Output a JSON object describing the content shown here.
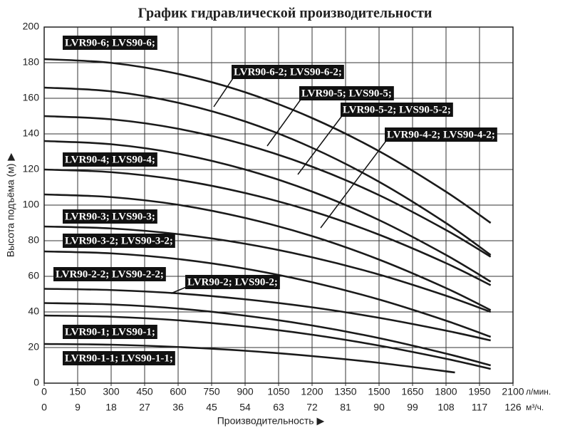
{
  "chart_data": {
    "type": "line",
    "title": "График гидравлической производительности",
    "ylabel": "Высота подъёма (м) ▶",
    "xlabel": "Производительность ▶",
    "x_unit": "л/мин.",
    "x2_unit": "м³/ч.",
    "xlim": [
      0,
      2100
    ],
    "xticks": [
      0,
      150,
      300,
      450,
      600,
      750,
      900,
      1050,
      1200,
      1350,
      1500,
      1650,
      1800,
      1950,
      2100
    ],
    "x2lim": [
      0,
      126
    ],
    "x2ticks": [
      0,
      9,
      18,
      27,
      36,
      45,
      54,
      63,
      72,
      81,
      90,
      99,
      108,
      117,
      126
    ],
    "ylim": [
      0,
      200
    ],
    "yticks": [
      0,
      20,
      40,
      60,
      80,
      100,
      120,
      140,
      160,
      180,
      200
    ],
    "grid": true,
    "color": "#1a1a1a",
    "series": [
      {
        "name": "LVR90-6; LVS90-6;",
        "x": [
          0,
          300,
          600,
          900,
          1200,
          1500,
          1800,
          2000
        ],
        "values": [
          182,
          179.9,
          173.7,
          163.4,
          148.9,
          130.3,
          107.5,
          90
        ]
      },
      {
        "name": "LVR90-6-2; LVS90-6-2;",
        "x": [
          0,
          300,
          600,
          900,
          1200,
          1500,
          1800,
          2000
        ],
        "values": [
          166,
          163.9,
          157.5,
          147,
          132.2,
          113.1,
          89.9,
          72
        ]
      },
      {
        "name": "LVR90-5; LVS90-5;",
        "x": [
          0,
          300,
          600,
          900,
          1200,
          1500,
          1800,
          2000
        ],
        "values": [
          150,
          148.2,
          142.9,
          134,
          121.6,
          105.6,
          86,
          71
        ]
      },
      {
        "name": "LVR90-5-2; LVS90-5-2;",
        "x": [
          0,
          300,
          600,
          900,
          1200,
          1500,
          1800,
          2000
        ],
        "values": [
          136,
          134.2,
          128.9,
          120,
          107.6,
          91.6,
          72,
          57
        ]
      },
      {
        "name": "LVR90-4; LVS90-4;",
        "x": [
          0,
          300,
          600,
          900,
          1200,
          1500,
          1800,
          2000
        ],
        "values": [
          120,
          118.5,
          114.2,
          106.8,
          96.6,
          83.4,
          67.4,
          55
        ]
      },
      {
        "name": "LVR90-4-2; LVS90-4-2;",
        "x": [
          0,
          300,
          600,
          900,
          1200,
          1500,
          1800,
          2000
        ],
        "values": [
          106,
          104.5,
          100.2,
          92.8,
          82.6,
          69.4,
          53.4,
          41
        ]
      },
      {
        "name": "LVR90-3; LVS90-3;",
        "x": [
          0,
          300,
          600,
          900,
          1200,
          1500,
          1800,
          2000
        ],
        "values": [
          88,
          86.9,
          83.7,
          78.3,
          70.7,
          61,
          49.1,
          40
        ]
      },
      {
        "name": "LVR90-3-2; LVS90-3-2;",
        "x": [
          0,
          300,
          600,
          900,
          1200,
          1500,
          1800,
          2000
        ],
        "values": [
          74,
          72.9,
          69.7,
          64.3,
          56.7,
          47,
          35.1,
          26
        ]
      },
      {
        "name": "LVR90-2-2; LVS90-2-2;",
        "x": [
          0,
          300,
          600,
          900,
          1200,
          1500,
          1800,
          2000
        ],
        "values": [
          53,
          52.3,
          50.4,
          47.1,
          42.6,
          36.7,
          29.5,
          24
        ]
      },
      {
        "name": "LVR90-2; LVS90-2;",
        "x": [
          0,
          300,
          600,
          900,
          1200,
          1500,
          1800,
          2000
        ],
        "values": [
          45,
          44.2,
          41.9,
          37.9,
          32.4,
          25.3,
          16.6,
          10
        ]
      },
      {
        "name": "LVR90-1; LVS90-1;",
        "x": [
          0,
          300,
          600,
          900,
          1200,
          1500,
          1800,
          2000
        ],
        "values": [
          38,
          37.3,
          35.3,
          31.9,
          27.2,
          21.1,
          13.7,
          8
        ]
      },
      {
        "name": "LVR90-1-1; LVS90-1-1;",
        "x": [
          0,
          300,
          600,
          900,
          1200,
          1500,
          1840
        ],
        "values": [
          22,
          21.6,
          20.3,
          18.2,
          15.2,
          11.4,
          6
        ]
      }
    ]
  }
}
